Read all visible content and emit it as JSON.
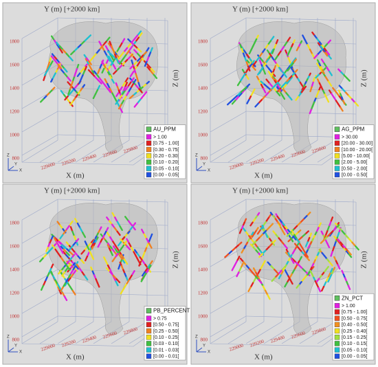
{
  "panels": [
    {
      "y_axis_label": "Y (m) [+2000 km]",
      "x_axis_label": "X (m)",
      "z_axis_label": "Z (m)",
      "z_ticks": [
        1800,
        1600,
        1400,
        1200,
        1000,
        800
      ],
      "x_ticks": [
        229000,
        229200,
        229400,
        229600,
        229800
      ],
      "legend": {
        "title": "AU_PPM",
        "entries": [
          {
            "label": "> 1.00",
            "color": "#e020e0"
          },
          {
            "label": "[0.75 - 1.00]",
            "color": "#e02020"
          },
          {
            "label": "[0.30 - 0.75[",
            "color": "#f08020"
          },
          {
            "label": "[0.20 - 0.30[",
            "color": "#f0e020"
          },
          {
            "label": "[0.10 - 0.20[",
            "color": "#40c040"
          },
          {
            "label": "[0.05 - 0.10[",
            "color": "#20c0d0"
          },
          {
            "label": "[0.00 - 0.05[",
            "color": "#2050e0"
          }
        ]
      }
    },
    {
      "y_axis_label": "Y (m) [+2000 km]",
      "x_axis_label": "X (m)",
      "z_axis_label": "Z (m)",
      "z_ticks": [
        1800,
        1600,
        1400,
        1200,
        1000,
        800
      ],
      "x_ticks": [
        229000,
        229200,
        229400,
        229600,
        229800
      ],
      "legend": {
        "title": "AG_PPM",
        "entries": [
          {
            "label": "> 30.00",
            "color": "#e020e0"
          },
          {
            "label": "[20.00 - 30.00]",
            "color": "#e02020"
          },
          {
            "label": "[10.00 - 20.00[",
            "color": "#f08020"
          },
          {
            "label": "[5.00 - 10.00[",
            "color": "#f0e020"
          },
          {
            "label": "[2.00 - 5.00[",
            "color": "#40c040"
          },
          {
            "label": "[0.50 - 2.00[",
            "color": "#20c0d0"
          },
          {
            "label": "[0.00 - 0.50[",
            "color": "#2050e0"
          }
        ]
      }
    },
    {
      "y_axis_label": "Y (m) [+2000 km]",
      "x_axis_label": "X (m)",
      "z_axis_label": "Z (m)",
      "z_ticks": [
        1800,
        1600,
        1400,
        1200,
        1000,
        800
      ],
      "x_ticks": [
        229000,
        229200,
        229400,
        229600,
        229800
      ],
      "legend": {
        "title": "PB_PERCENT",
        "entries": [
          {
            "label": "> 0.75",
            "color": "#e020e0"
          },
          {
            "label": "[0.50 - 0.75]",
            "color": "#e02020"
          },
          {
            "label": "[0.25 - 0.50[",
            "color": "#f08020"
          },
          {
            "label": "[0.10 - 0.25[",
            "color": "#f0e020"
          },
          {
            "label": "[0.03 - 0.10[",
            "color": "#40c040"
          },
          {
            "label": "[0.01 - 0.03[",
            "color": "#20c0d0"
          },
          {
            "label": "[0.00 - 0.01[",
            "color": "#2050e0"
          }
        ]
      }
    },
    {
      "y_axis_label": "Y (m) [+2000 km]",
      "x_axis_label": "X (m)",
      "z_axis_label": "Z (m)",
      "z_ticks": [
        1800,
        1600,
        1400,
        1200,
        1000,
        800
      ],
      "x_ticks": [
        229000,
        229200,
        229400,
        229600,
        229800
      ],
      "legend": {
        "title": "ZN_PCT",
        "entries": [
          {
            "label": "> 1.00",
            "color": "#e020e0"
          },
          {
            "label": "[0.75 - 1.00]",
            "color": "#e02020"
          },
          {
            "label": "[0.50 - 0.75[",
            "color": "#f05020"
          },
          {
            "label": "[0.40 - 0.50[",
            "color": "#f09020"
          },
          {
            "label": "[0.25 - 0.40[",
            "color": "#f0e020"
          },
          {
            "label": "[0.15 - 0.25[",
            "color": "#a0e040"
          },
          {
            "label": "[0.10 - 0.15[",
            "color": "#40c040"
          },
          {
            "label": "[0.05 - 0.10[",
            "color": "#20c0d0"
          },
          {
            "label": "[0.00 - 0.05[",
            "color": "#2050e0"
          }
        ]
      }
    }
  ],
  "gizmo": {
    "z": "Z",
    "x": "X",
    "y": "Y"
  }
}
